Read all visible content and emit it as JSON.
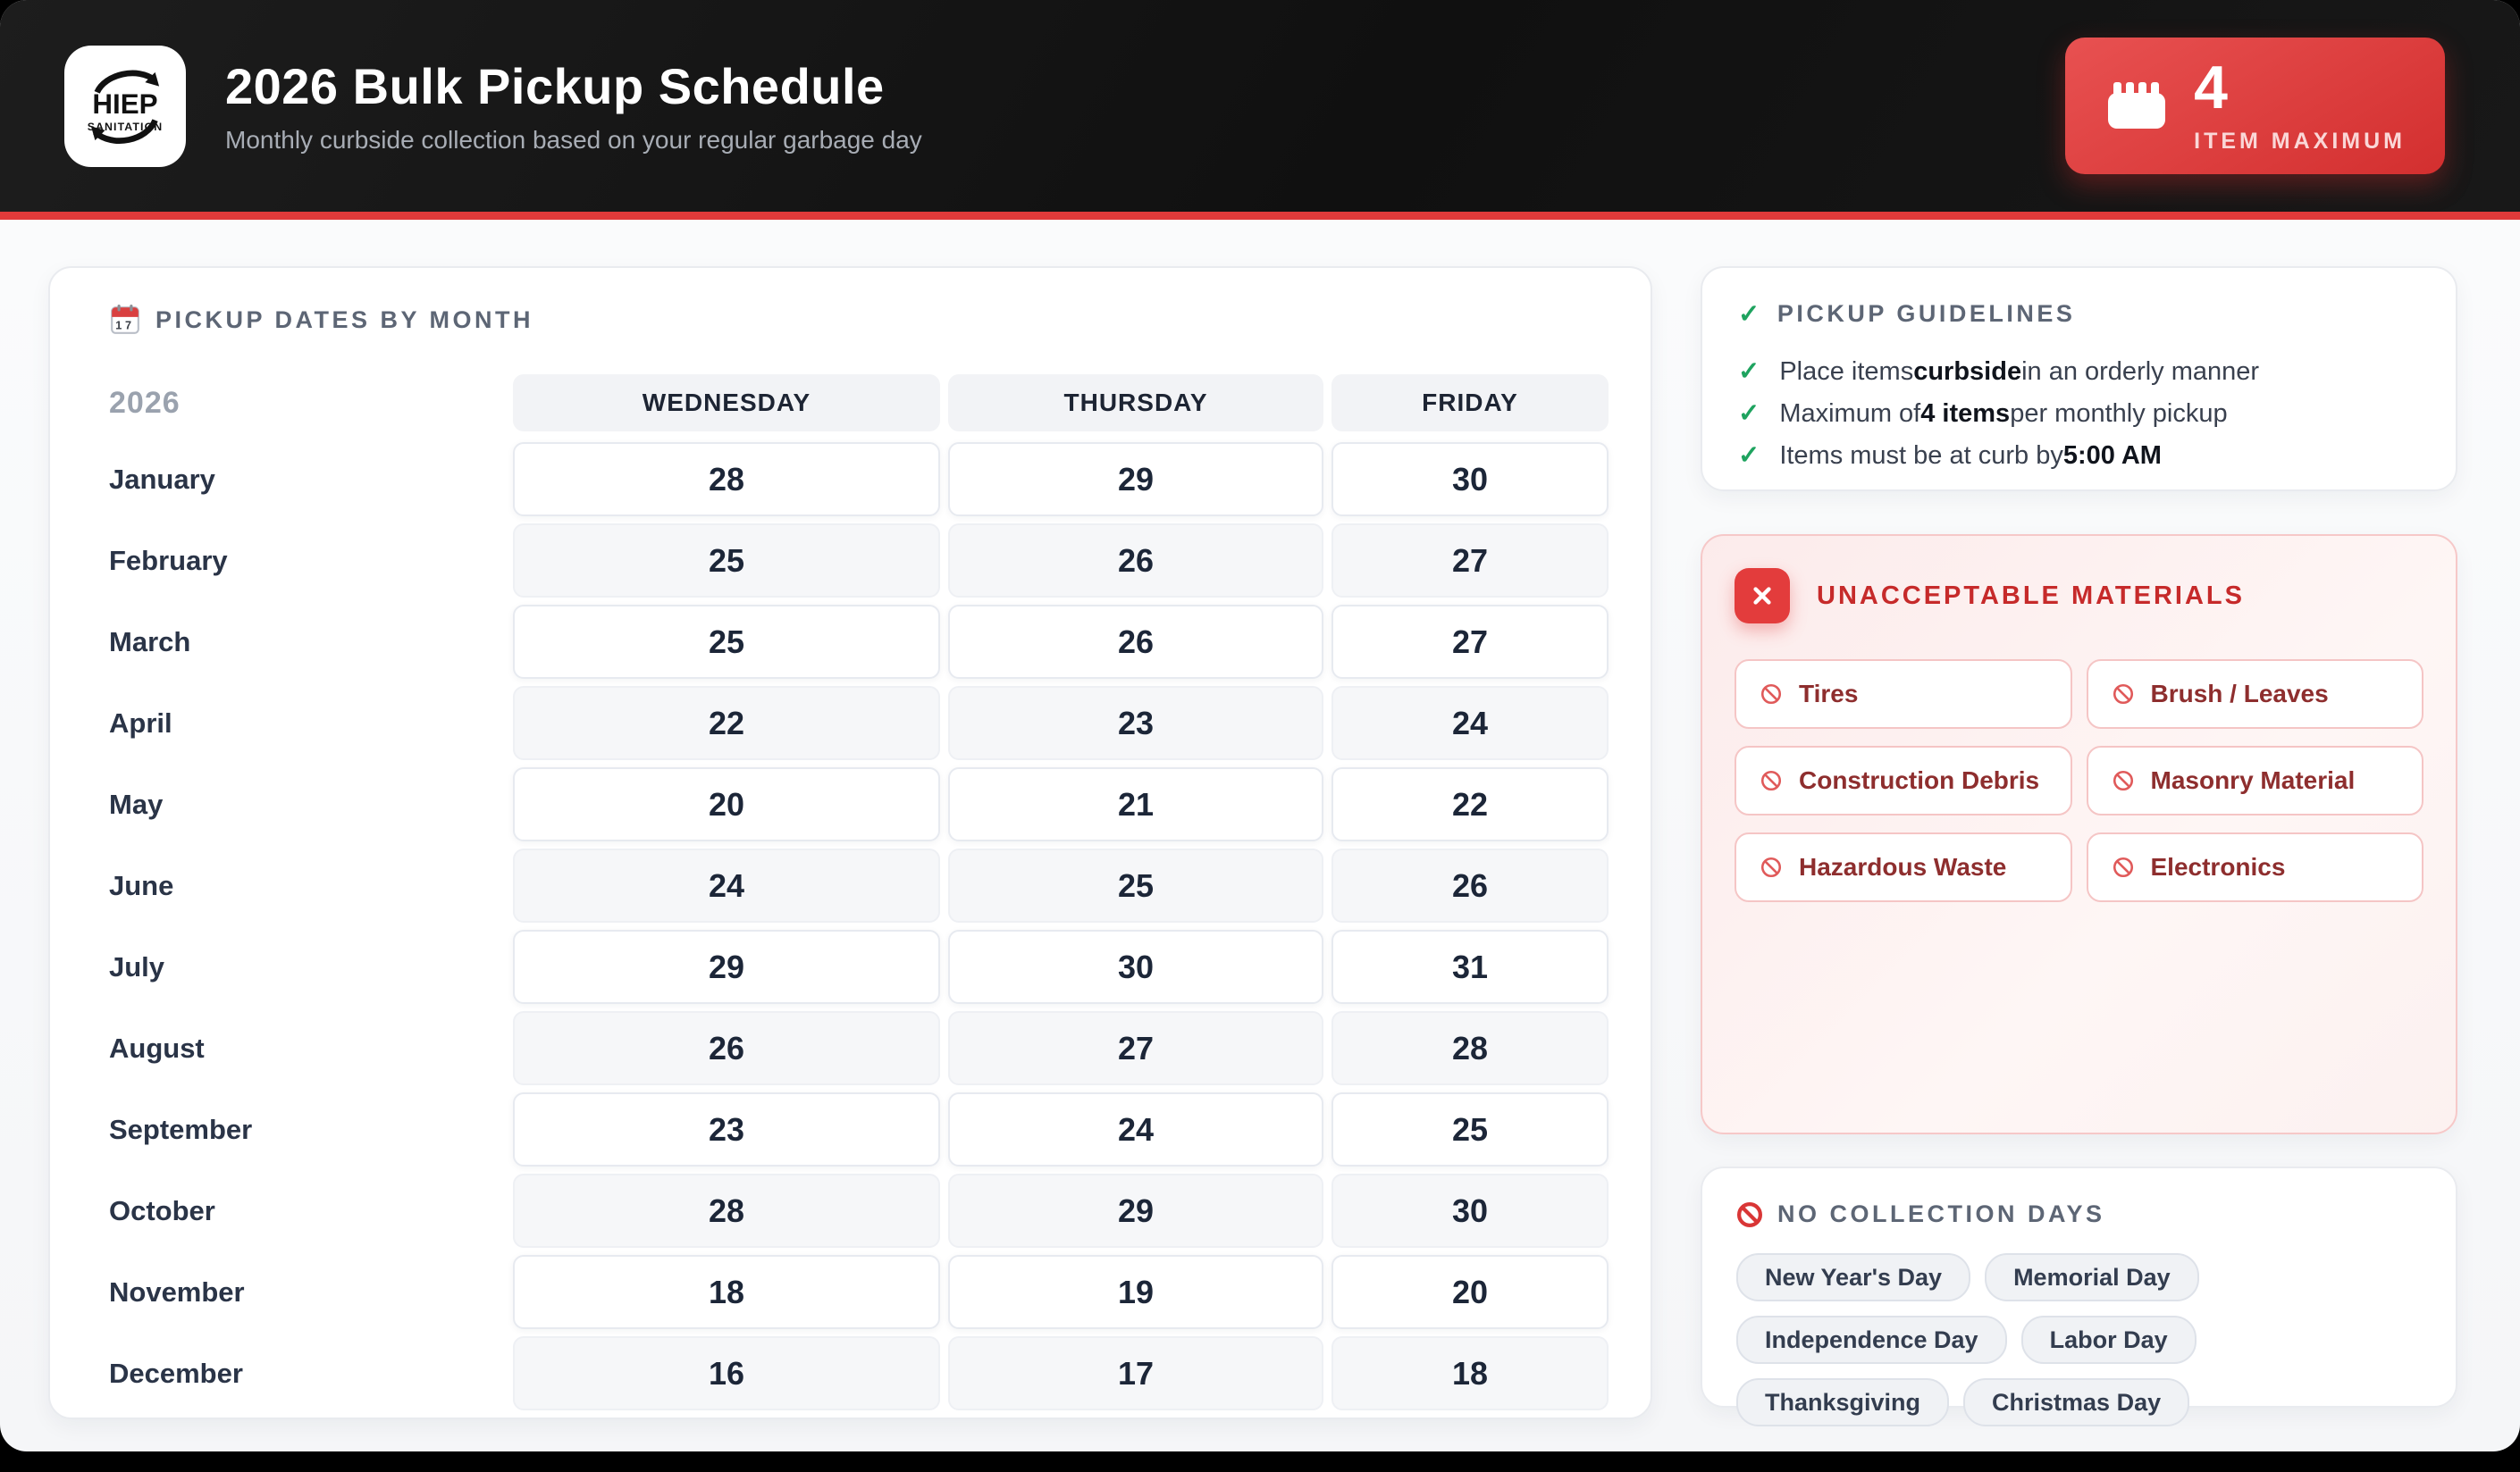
{
  "header": {
    "logo": {
      "line1": "HIEP",
      "line2": "SANITATION"
    },
    "title": "2026 Bulk Pickup Schedule",
    "subtitle": "Monthly curbside collection based on your regular garbage day",
    "badge": {
      "icon": "calendar-icon",
      "number": "4",
      "label": "ITEM MAXIMUM"
    }
  },
  "schedule": {
    "icon": "calendar-page-icon",
    "heading": "PICKUP DATES BY MONTH",
    "year": "2026",
    "columns": [
      "WEDNESDAY",
      "THURSDAY",
      "FRIDAY"
    ],
    "rows": [
      {
        "month": "January",
        "dates": [
          "28",
          "29",
          "30"
        ]
      },
      {
        "month": "February",
        "dates": [
          "25",
          "26",
          "27"
        ]
      },
      {
        "month": "March",
        "dates": [
          "25",
          "26",
          "27"
        ]
      },
      {
        "month": "April",
        "dates": [
          "22",
          "23",
          "24"
        ]
      },
      {
        "month": "May",
        "dates": [
          "20",
          "21",
          "22"
        ]
      },
      {
        "month": "June",
        "dates": [
          "24",
          "25",
          "26"
        ]
      },
      {
        "month": "July",
        "dates": [
          "29",
          "30",
          "31"
        ]
      },
      {
        "month": "August",
        "dates": [
          "26",
          "27",
          "28"
        ]
      },
      {
        "month": "September",
        "dates": [
          "23",
          "24",
          "25"
        ]
      },
      {
        "month": "October",
        "dates": [
          "28",
          "29",
          "30"
        ]
      },
      {
        "month": "November",
        "dates": [
          "18",
          "19",
          "20"
        ]
      },
      {
        "month": "December",
        "dates": [
          "16",
          "17",
          "18"
        ]
      }
    ]
  },
  "guidelines": {
    "icon": "check-icon",
    "heading": "PICKUP GUIDELINES",
    "check_glyph": "✓",
    "items": [
      {
        "pre": "Place items",
        "bold": "curbside",
        "post": "in an orderly manner"
      },
      {
        "pre": "Maximum of",
        "bold": "4 items",
        "post": "per monthly pickup"
      },
      {
        "pre": "Items must be at curb by",
        "bold": "5:00 AM",
        "post": ""
      }
    ]
  },
  "unacceptable": {
    "icon": "x-icon",
    "heading": "UNACCEPTABLE MATERIALS",
    "items": [
      "Tires",
      "Brush / Leaves",
      "Construction Debris",
      "Masonry Material",
      "Hazardous Waste",
      "Electronics"
    ]
  },
  "no_collection": {
    "icon": "no-entry-icon",
    "heading": "NO COLLECTION DAYS",
    "days": [
      "New Year's Day",
      "Memorial Day",
      "Independence Day",
      "Labor Day",
      "Thanksgiving",
      "Christmas Day"
    ]
  },
  "colors": {
    "accent_red": "#e03a3a",
    "deep_red_title": "#c62a2a",
    "maroon_item_text": "#8e2e2e",
    "green_check": "#1ea35f",
    "header_bg": "#141414",
    "page_bg": "#f7f8fa",
    "muted_heading": "#5d6675",
    "date_text": "#1c2638"
  }
}
